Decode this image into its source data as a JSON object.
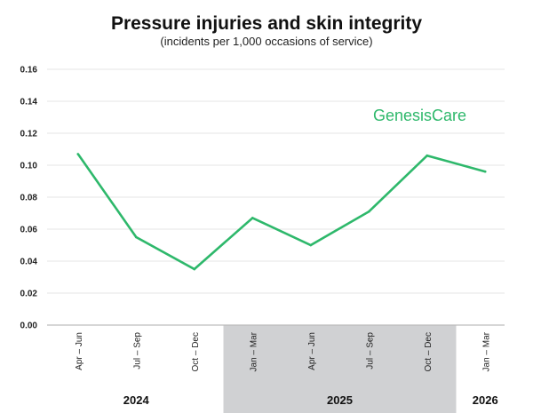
{
  "chart_data": {
    "type": "line",
    "title": "Pressure injuries and skin integrity",
    "subtitle": "(incidents per 1,000 occasions of service)",
    "xlabel": "",
    "ylabel": "",
    "categories": [
      "Apr – Jun",
      "Jul – Sep",
      "Oct – Dec",
      "Jan – Mar",
      "Apr – Jun",
      "Jul – Sep",
      "Oct – Dec",
      "Jan – Mar"
    ],
    "year_groups": [
      {
        "label": "2024",
        "count": 3,
        "shaded": false
      },
      {
        "label": "2025",
        "count": 4,
        "shaded": true
      },
      {
        "label": "2026",
        "count": 1,
        "shaded": false
      }
    ],
    "series": [
      {
        "values": [
          0.107,
          0.055,
          0.035,
          0.067,
          0.05,
          0.071,
          0.106,
          0.096
        ],
        "color": "#2eb86b"
      }
    ],
    "ylim": [
      0,
      0.16
    ],
    "yticks": [
      "0.00",
      "0.02",
      "0.04",
      "0.06",
      "0.08",
      "0.10",
      "0.12",
      "0.14",
      "0.16"
    ],
    "annotation": "GenesisCare",
    "grid": true,
    "colors": {
      "line": "#2eb86b",
      "annotation": "#2eb86b",
      "shade": "#d0d1d3",
      "grid": "#e6e6e6"
    }
  }
}
